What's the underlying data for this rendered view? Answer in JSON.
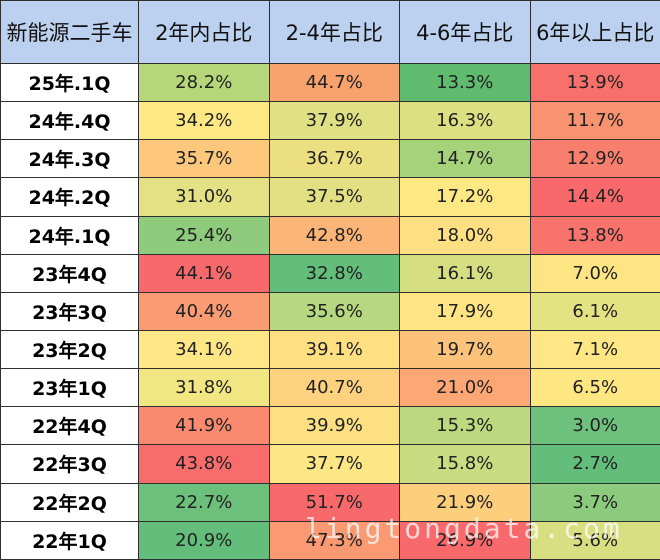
{
  "table": {
    "headers": [
      "新能源二手车",
      "2年内占比",
      "2-4年占比",
      "4-6年占比",
      "6年以上占比"
    ],
    "rows": [
      {
        "label": "25年.1Q",
        "values": [
          "28.2%",
          "44.7%",
          "13.3%",
          "13.9%"
        ],
        "colors": [
          "#b5d77a",
          "#f8a36e",
          "#5fbb6d",
          "#f8706b"
        ]
      },
      {
        "label": "24年.4Q",
        "values": [
          "34.2%",
          "37.9%",
          "16.3%",
          "11.7%"
        ],
        "colors": [
          "#fde884",
          "#dfe083",
          "#dce082",
          "#f99270"
        ]
      },
      {
        "label": "24年.3Q",
        "values": [
          "35.7%",
          "36.7%",
          "14.7%",
          "12.9%"
        ],
        "colors": [
          "#fdc77c",
          "#ecdf81",
          "#a6d27c",
          "#f87e6d"
        ]
      },
      {
        "label": "24年.2Q",
        "values": [
          "31.0%",
          "37.5%",
          "17.2%",
          "14.4%"
        ],
        "colors": [
          "#e3e183",
          "#e2e082",
          "#fde884",
          "#f8696b"
        ]
      },
      {
        "label": "24年.1Q",
        "values": [
          "25.4%",
          "42.8%",
          "18.0%",
          "13.8%"
        ],
        "colors": [
          "#8fcb7c",
          "#fcb576",
          "#fee082",
          "#f8736b"
        ]
      },
      {
        "label": "23年4Q",
        "values": [
          "44.1%",
          "32.8%",
          "16.1%",
          "7.0%"
        ],
        "colors": [
          "#f8696b",
          "#63be7b",
          "#d5df82",
          "#fee583"
        ]
      },
      {
        "label": "23年3Q",
        "values": [
          "40.4%",
          "35.6%",
          "17.9%",
          "6.1%"
        ],
        "colors": [
          "#fa9b73",
          "#b6d880",
          "#fee482",
          "#e3e383"
        ]
      },
      {
        "label": "23年2Q",
        "values": [
          "34.1%",
          "39.1%",
          "19.7%",
          "7.1%"
        ],
        "colors": [
          "#fee784",
          "#fee083",
          "#fdc37a",
          "#fee784"
        ]
      },
      {
        "label": "23年1Q",
        "values": [
          "31.8%",
          "40.7%",
          "21.0%",
          "6.5%"
        ],
        "colors": [
          "#f2e683",
          "#fdd17e",
          "#fca774",
          "#fee783"
        ]
      },
      {
        "label": "22年4Q",
        "values": [
          "41.9%",
          "39.9%",
          "15.3%",
          "3.0%"
        ],
        "colors": [
          "#f98a6f",
          "#fde081",
          "#bcd980",
          "#6dc17c"
        ]
      },
      {
        "label": "22年3Q",
        "values": [
          "43.8%",
          "37.7%",
          "15.8%",
          "2.7%"
        ],
        "colors": [
          "#f86c6b",
          "#fde784",
          "#c9dc81",
          "#63be7b"
        ]
      },
      {
        "label": "22年2Q",
        "values": [
          "22.7%",
          "51.7%",
          "21.9%",
          "3.7%"
        ],
        "colors": [
          "#6cc07c",
          "#f8696b",
          "#fdcf7d",
          "#8ccb7d"
        ]
      },
      {
        "label": "22年1Q",
        "values": [
          "20.9%",
          "47.3%",
          "26.9%",
          "5.6%"
        ],
        "colors": [
          "#63be7b",
          "#fb9a72",
          "#f8696b",
          "#d8df82"
        ]
      }
    ]
  },
  "watermark": "lingtongdata.com"
}
